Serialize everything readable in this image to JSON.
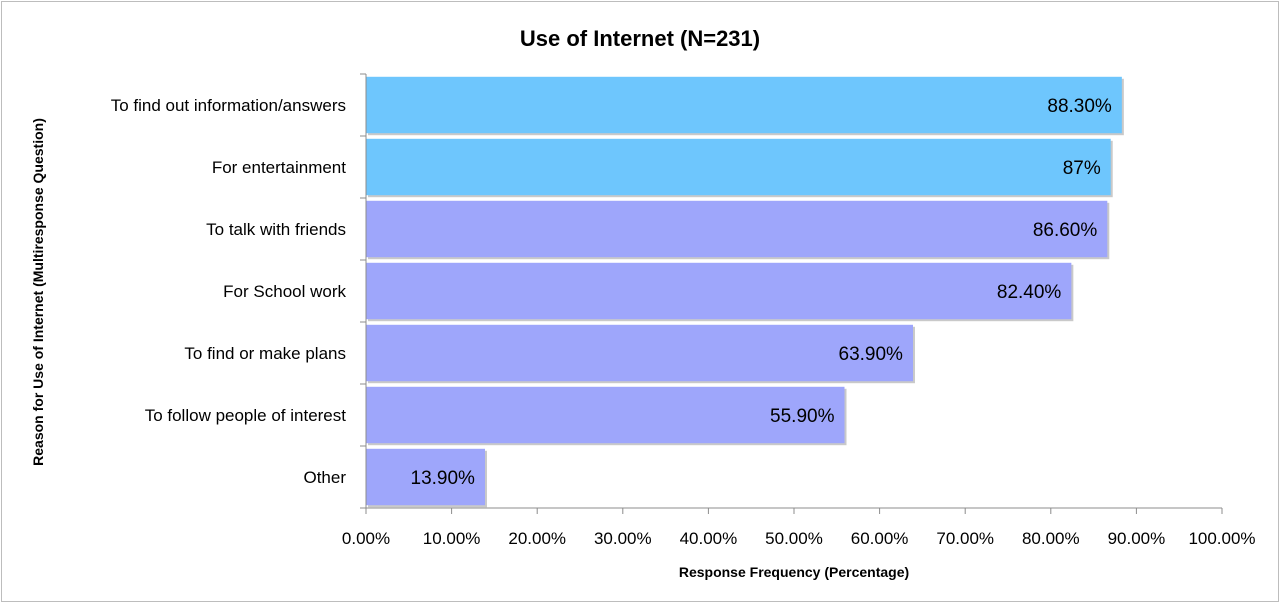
{
  "chart_data": {
    "type": "bar",
    "orientation": "horizontal",
    "title": "Use of Internet (N=231)",
    "xlabel": "Response Frequency (Percentage)",
    "ylabel": "Reason for Use of Internet (Multiresponse Question)",
    "xlim": [
      0,
      100
    ],
    "xticks": [
      "0.00%",
      "10.00%",
      "20.00%",
      "30.00%",
      "40.00%",
      "50.00%",
      "60.00%",
      "70.00%",
      "80.00%",
      "90.00%",
      "100.00%"
    ],
    "grid": false,
    "legend": "none",
    "categories": [
      "To find out information/answers",
      "For entertainment",
      "To talk with friends",
      "For School work",
      "To find or make plans",
      "To follow people of interest",
      "Other"
    ],
    "values": [
      88.3,
      87,
      86.6,
      82.4,
      63.9,
      55.9,
      13.9
    ],
    "value_labels": [
      "88.30%",
      "87%",
      "86.60%",
      "82.40%",
      "63.90%",
      "55.90%",
      "13.90%"
    ],
    "bar_colors": [
      "#6ec6fd",
      "#6ec6fd",
      "#9ea6fb",
      "#9ea6fb",
      "#9ea6fb",
      "#9ea6fb",
      "#9ea6fb"
    ]
  }
}
